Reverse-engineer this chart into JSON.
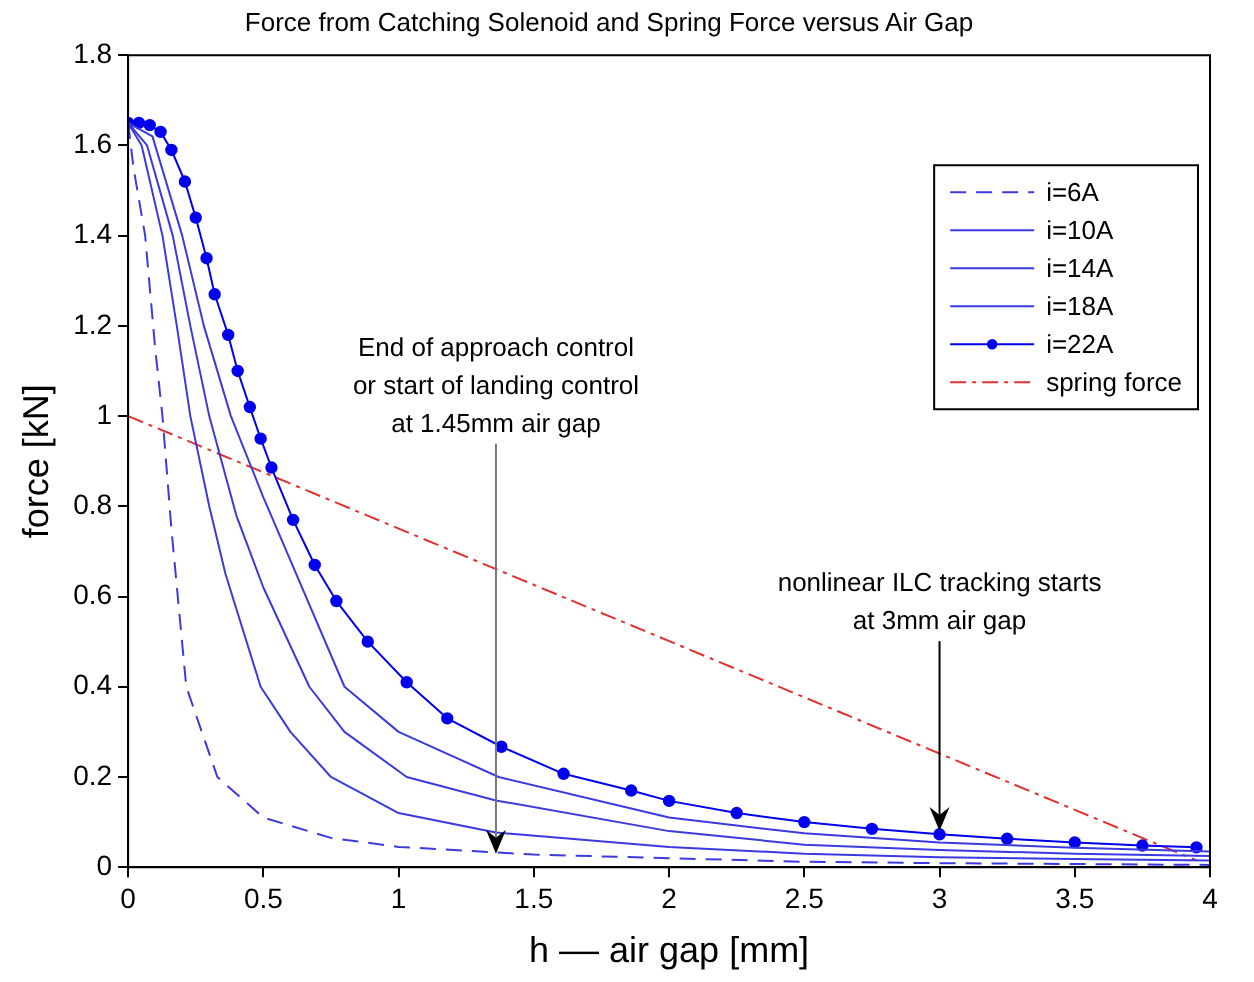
{
  "chart_data": {
    "type": "line",
    "title": "Force from Catching Solenoid and Spring Force versus Air Gap",
    "xlabel": "h –– air gap [mm]",
    "ylabel": "force [kN]",
    "xlim": [
      0,
      4
    ],
    "xticks": [
      0,
      0.5,
      1,
      1.5,
      2,
      2.5,
      3,
      3.5,
      4
    ],
    "ylim": [
      0,
      1.8
    ],
    "yticks": [
      0,
      0.2,
      0.4,
      0.6,
      0.8,
      1,
      1.2,
      1.4,
      1.6,
      1.8
    ],
    "grid": false,
    "legend": "top right",
    "marker": "none",
    "series": [
      {
        "name": "i=6A",
        "color": "#3a3ae0",
        "line_style": "dashed",
        "x": [
          0,
          0.02,
          0.063,
          0.1,
          0.127,
          0.16,
          0.215,
          0.33,
          0.5,
          0.75,
          1,
          1.5,
          2,
          2.5,
          3,
          3.5,
          4
        ],
        "values": [
          1.65,
          1.55,
          1.4,
          1.15,
          1,
          0.75,
          0.4,
          0.2,
          0.11,
          0.065,
          0.045,
          0.028,
          0.02,
          0.012,
          0.009,
          0.007,
          0.005
        ]
      },
      {
        "name": "i=10A",
        "color": "#3a3ae0",
        "x": [
          0,
          0.05,
          0.127,
          0.18,
          0.23,
          0.3,
          0.36,
          0.49,
          0.6,
          0.75,
          1,
          1.36,
          2,
          2.5,
          3,
          3.5,
          4
        ],
        "values": [
          1.65,
          1.6,
          1.4,
          1.2,
          1,
          0.8,
          0.65,
          0.4,
          0.3,
          0.2,
          0.12,
          0.077,
          0.045,
          0.03,
          0.022,
          0.018,
          0.015
        ]
      },
      {
        "name": "i=14A",
        "color": "#3a3ae0",
        "x": [
          0,
          0.07,
          0.165,
          0.23,
          0.3,
          0.4,
          0.5,
          0.67,
          0.8,
          1.03,
          1.36,
          2,
          2.5,
          3,
          3.5,
          4
        ],
        "values": [
          1.65,
          1.6,
          1.4,
          1.2,
          1,
          0.78,
          0.62,
          0.4,
          0.3,
          0.2,
          0.148,
          0.08,
          0.05,
          0.038,
          0.03,
          0.025
        ]
      },
      {
        "name": "i=18A",
        "color": "#3a3ae0",
        "x": [
          0,
          0.09,
          0.2,
          0.28,
          0.38,
          0.5,
          0.6,
          0.8,
          1,
          1.37,
          2,
          2.5,
          3,
          3.5,
          4
        ],
        "values": [
          1.65,
          1.62,
          1.4,
          1.2,
          1,
          0.82,
          0.68,
          0.4,
          0.3,
          0.2,
          0.11,
          0.075,
          0.055,
          0.043,
          0.035
        ]
      },
      {
        "name": "i=22A",
        "color": "#0000ee",
        "marker": "circle",
        "x": [
          0,
          0.04,
          0.08,
          0.12,
          0.16,
          0.21,
          0.25,
          0.29,
          0.32,
          0.37,
          0.405,
          0.45,
          0.49,
          0.53,
          0.61,
          0.69,
          0.77,
          0.886,
          1.03,
          1.18,
          1.38,
          1.61,
          1.86,
          2,
          2.25,
          2.5,
          2.75,
          3,
          3.25,
          3.5,
          3.75,
          3.95
        ],
        "values": [
          1.65,
          1.65,
          1.645,
          1.63,
          1.59,
          1.52,
          1.44,
          1.35,
          1.27,
          1.18,
          1.1,
          1.02,
          0.95,
          0.886,
          0.77,
          0.67,
          0.59,
          0.5,
          0.41,
          0.33,
          0.267,
          0.207,
          0.17,
          0.147,
          0.12,
          0.1,
          0.085,
          0.073,
          0.063,
          0.055,
          0.048,
          0.044
        ]
      },
      {
        "name": "spring force",
        "color": "#e03030",
        "line_style": "dashdot",
        "x": [
          0,
          3.95
        ],
        "values": [
          1,
          0.015
        ]
      }
    ],
    "annotations": [
      {
        "text": "End of approach control\nor start of landing control\nat 1.45mm air gap",
        "x": 1.36,
        "y": 0.03
      },
      {
        "text": "nonlinear ILC tracking starts\nat 3mm air gap",
        "x": 3,
        "y": 0.08
      }
    ]
  }
}
